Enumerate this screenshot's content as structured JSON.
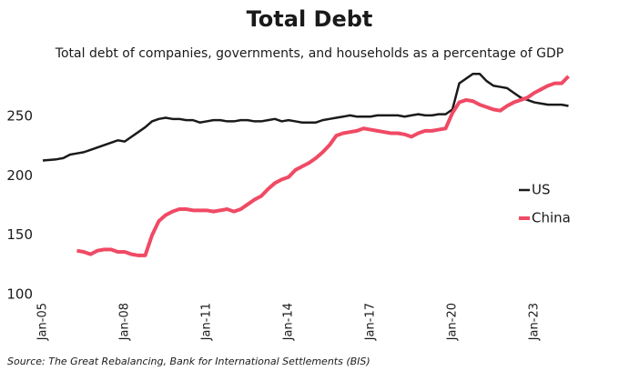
{
  "chart_data": {
    "type": "line",
    "title": "Total Debt",
    "subtitle": "Total debt of companies, governments, and households as a percentage of GDP",
    "source": "Source: The Great Rebalancing, Bank for International Settlements (BIS)",
    "categories": [
      "Jan-05",
      null,
      null,
      null,
      null,
      null,
      null,
      null,
      null,
      null,
      null,
      null,
      "Jan-08",
      null,
      null,
      null,
      null,
      null,
      null,
      null,
      null,
      null,
      null,
      null,
      "Jan-11",
      null,
      null,
      null,
      null,
      null,
      null,
      null,
      null,
      null,
      null,
      null,
      "Jan-14",
      null,
      null,
      null,
      null,
      null,
      null,
      null,
      null,
      null,
      null,
      null,
      "Jan-17",
      null,
      null,
      null,
      null,
      null,
      null,
      null,
      null,
      null,
      null,
      null,
      "Jan-20",
      null,
      null,
      null,
      null,
      null,
      null,
      null,
      null,
      null,
      null,
      null,
      "Jan-23",
      null,
      null,
      null,
      null,
      null
    ],
    "series": [
      {
        "name": "US",
        "color": "#1a1a1a",
        "values": [
          213,
          213.5,
          214,
          215,
          218,
          219,
          220,
          222,
          224,
          226,
          228,
          230,
          229,
          233,
          237,
          241,
          246,
          248,
          249,
          248,
          248,
          247,
          247,
          245,
          246,
          247,
          247,
          246,
          246,
          247,
          247,
          246,
          246,
          247,
          248,
          246,
          247,
          246,
          245,
          245,
          245,
          247,
          248,
          249,
          250,
          251,
          250,
          250,
          250,
          251,
          251,
          251,
          251,
          250,
          251,
          252,
          251,
          251,
          252,
          252,
          256,
          278,
          282,
          286,
          286,
          280,
          276,
          275,
          274,
          270,
          266,
          264,
          262,
          261,
          260,
          260,
          260,
          259
        ]
      },
      {
        "name": "China",
        "color": "#f04a64",
        "values": [
          null,
          null,
          null,
          null,
          null,
          137,
          136,
          134,
          137,
          138,
          138,
          136,
          136,
          134,
          133,
          133,
          150,
          162,
          167,
          170,
          172,
          172,
          171,
          171,
          171,
          170,
          171,
          172,
          170,
          172,
          176,
          180,
          183,
          189,
          194,
          197,
          199,
          205,
          208,
          211,
          215,
          220,
          226,
          234,
          236,
          237,
          238,
          240,
          239,
          238,
          237,
          236,
          236,
          235,
          233,
          236,
          238,
          238,
          239,
          240,
          253,
          262,
          264,
          263,
          260,
          258,
          256,
          255,
          259,
          262,
          264,
          266,
          270,
          273,
          276,
          278,
          278,
          284
        ]
      }
    ],
    "ylim": [
      100,
      290
    ],
    "yticks": [
      100,
      150,
      200,
      250
    ]
  }
}
